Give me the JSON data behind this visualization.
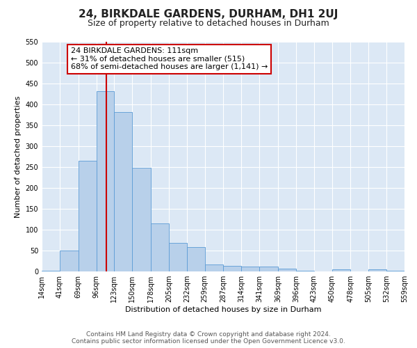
{
  "title": "24, BIRKDALE GARDENS, DURHAM, DH1 2UJ",
  "subtitle": "Size of property relative to detached houses in Durham",
  "xlabel": "Distribution of detached houses by size in Durham",
  "ylabel": "Number of detached properties",
  "bar_color": "#b8d0ea",
  "bar_edge_color": "#5b9bd5",
  "figure_facecolor": "#ffffff",
  "axes_facecolor": "#dce8f5",
  "grid_color": "#ffffff",
  "vline_x": 111,
  "vline_color": "#cc0000",
  "bin_edges": [
    14,
    41,
    69,
    96,
    123,
    150,
    178,
    205,
    232,
    259,
    287,
    314,
    341,
    369,
    396,
    423,
    450,
    478,
    505,
    532,
    559
  ],
  "bar_heights": [
    2,
    50,
    265,
    432,
    382,
    249,
    115,
    68,
    58,
    17,
    14,
    12,
    12,
    7,
    2,
    0,
    5,
    0,
    5,
    2
  ],
  "xlim": [
    14,
    559
  ],
  "ylim": [
    0,
    550
  ],
  "yticks": [
    0,
    50,
    100,
    150,
    200,
    250,
    300,
    350,
    400,
    450,
    500,
    550
  ],
  "annotation_title": "24 BIRKDALE GARDENS: 111sqm",
  "annotation_line2": "← 31% of detached houses are smaller (515)",
  "annotation_line3": "68% of semi-detached houses are larger (1,141) →",
  "annotation_box_facecolor": "#ffffff",
  "annotation_box_edgecolor": "#cc0000",
  "footer1": "Contains HM Land Registry data © Crown copyright and database right 2024.",
  "footer2": "Contains public sector information licensed under the Open Government Licence v3.0.",
  "title_fontsize": 11,
  "subtitle_fontsize": 9,
  "ylabel_fontsize": 8,
  "xlabel_fontsize": 8,
  "tick_fontsize": 7,
  "annotation_fontsize": 8,
  "footer_fontsize": 6.5
}
